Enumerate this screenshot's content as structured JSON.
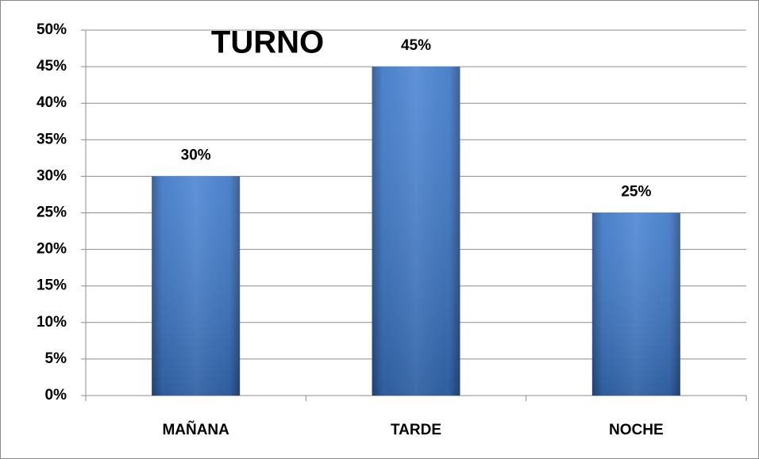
{
  "chart_data": {
    "type": "bar",
    "title": "TURNO",
    "categories": [
      "MAÑANA",
      "TARDE",
      "NOCHE"
    ],
    "values": [
      30,
      45,
      25
    ],
    "value_labels": [
      "30%",
      "45%",
      "25%"
    ],
    "color": "#3d7bd0",
    "ylim": [
      0,
      50
    ],
    "yticks": [
      {
        "value": 0,
        "label": "0%"
      },
      {
        "value": 5,
        "label": "5%"
      },
      {
        "value": 10,
        "label": "10%"
      },
      {
        "value": 15,
        "label": "15%"
      },
      {
        "value": 20,
        "label": "20%"
      },
      {
        "value": 25,
        "label": "25%"
      },
      {
        "value": 30,
        "label": "30%"
      },
      {
        "value": 35,
        "label": "35%"
      },
      {
        "value": 40,
        "label": "40%"
      },
      {
        "value": 45,
        "label": "45%"
      },
      {
        "value": 50,
        "label": "50%"
      }
    ],
    "grid": true
  }
}
